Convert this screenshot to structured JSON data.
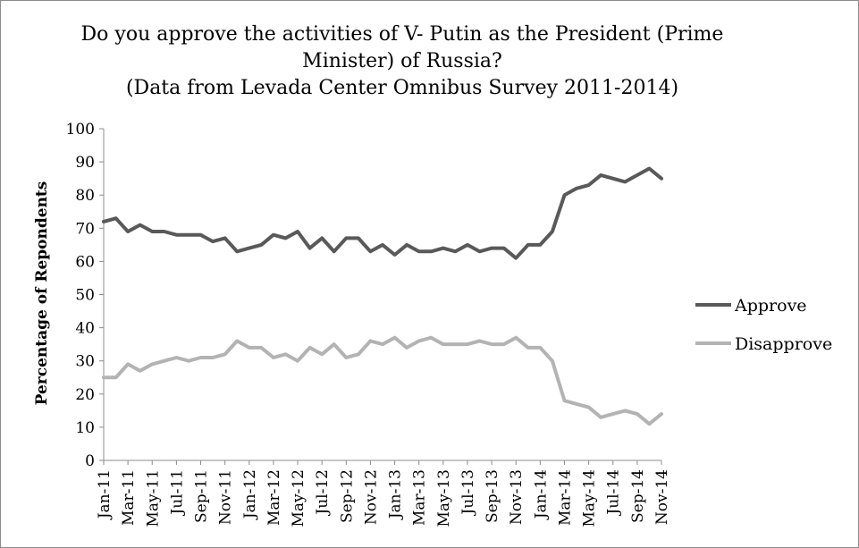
{
  "chart_data": {
    "type": "line",
    "title_lines": [
      "Do you approve the activities of V- Putin as the President (Prime",
      "Minister) of Russia?",
      "(Data from Levada Center Omnibus Survey 2011-2014)"
    ],
    "xlabel": "",
    "ylabel": "Percentage of Repondents",
    "ylim": [
      0,
      100
    ],
    "yticks": [
      0,
      10,
      20,
      30,
      40,
      50,
      60,
      70,
      80,
      90,
      100
    ],
    "legend_position": "right",
    "x": [
      "Jan-11",
      "Feb-11",
      "Mar-11",
      "Apr-11",
      "May-11",
      "Jun-11",
      "Jul-11",
      "Aug-11",
      "Sep-11",
      "Oct-11",
      "Nov-11",
      "Dec-11",
      "Jan-12",
      "Feb-12",
      "Mar-12",
      "Apr-12",
      "May-12",
      "Jun-12",
      "Jul-12",
      "Aug-12",
      "Sep-12",
      "Oct-12",
      "Nov-12",
      "Dec-12",
      "Jan-13",
      "Feb-13",
      "Mar-13",
      "Apr-13",
      "May-13",
      "Jun-13",
      "Jul-13",
      "Aug-13",
      "Sep-13",
      "Oct-13",
      "Nov-13",
      "Dec-13",
      "Jan-14",
      "Feb-14",
      "Mar-14",
      "Apr-14",
      "May-14",
      "Jun-14",
      "Jul-14",
      "Aug-14",
      "Sep-14",
      "Oct-14",
      "Nov-14"
    ],
    "x_tick_labels": [
      "Jan-11",
      "Mar-11",
      "May-11",
      "Jul-11",
      "Sep-11",
      "Nov-11",
      "Jan-12",
      "Mar-12",
      "May-12",
      "Jul-12",
      "Sep-12",
      "Nov-12",
      "Jan-13",
      "Mar-13",
      "May-13",
      "Jul-13",
      "Sep-13",
      "Nov-13",
      "Jan-14",
      "Mar-14",
      "May-14",
      "Jul-14",
      "Sep-14",
      "Nov-14"
    ],
    "series": [
      {
        "name": "Approve",
        "color": "#595959",
        "values": [
          72,
          73,
          69,
          71,
          69,
          69,
          68,
          68,
          68,
          66,
          67,
          63,
          64,
          65,
          68,
          67,
          69,
          64,
          67,
          63,
          67,
          67,
          63,
          65,
          62,
          65,
          63,
          63,
          64,
          63,
          65,
          63,
          64,
          64,
          61,
          65,
          65,
          69,
          80,
          82,
          83,
          86,
          85,
          84,
          86,
          88,
          85
        ]
      },
      {
        "name": "Disapprove",
        "color": "#b3b3b3",
        "values": [
          25,
          25,
          29,
          27,
          29,
          30,
          31,
          30,
          31,
          31,
          32,
          36,
          34,
          34,
          31,
          32,
          30,
          34,
          32,
          35,
          31,
          32,
          36,
          35,
          37,
          34,
          36,
          37,
          35,
          35,
          35,
          36,
          35,
          35,
          37,
          34,
          34,
          30,
          18,
          17,
          16,
          13,
          14,
          15,
          14,
          11,
          14
        ]
      }
    ]
  }
}
